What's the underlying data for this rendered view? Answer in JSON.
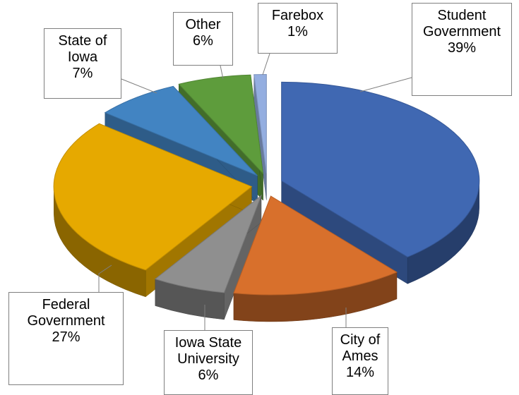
{
  "chart_data": {
    "type": "pie",
    "categories": [
      "Student Government",
      "City of Ames",
      "Iowa State University",
      "Federal Government",
      "State of Iowa",
      "Other",
      "Farebox"
    ],
    "values": [
      39,
      14,
      6,
      27,
      7,
      6,
      1
    ],
    "value_labels": [
      "39%",
      "14%",
      "6%",
      "27%",
      "7%",
      "6%",
      "1%"
    ],
    "colors": [
      "#4068b2",
      "#d8702c",
      "#8f8f8f",
      "#e6a900",
      "#4284c2",
      "#5e9c3c",
      "#94aee0"
    ]
  }
}
